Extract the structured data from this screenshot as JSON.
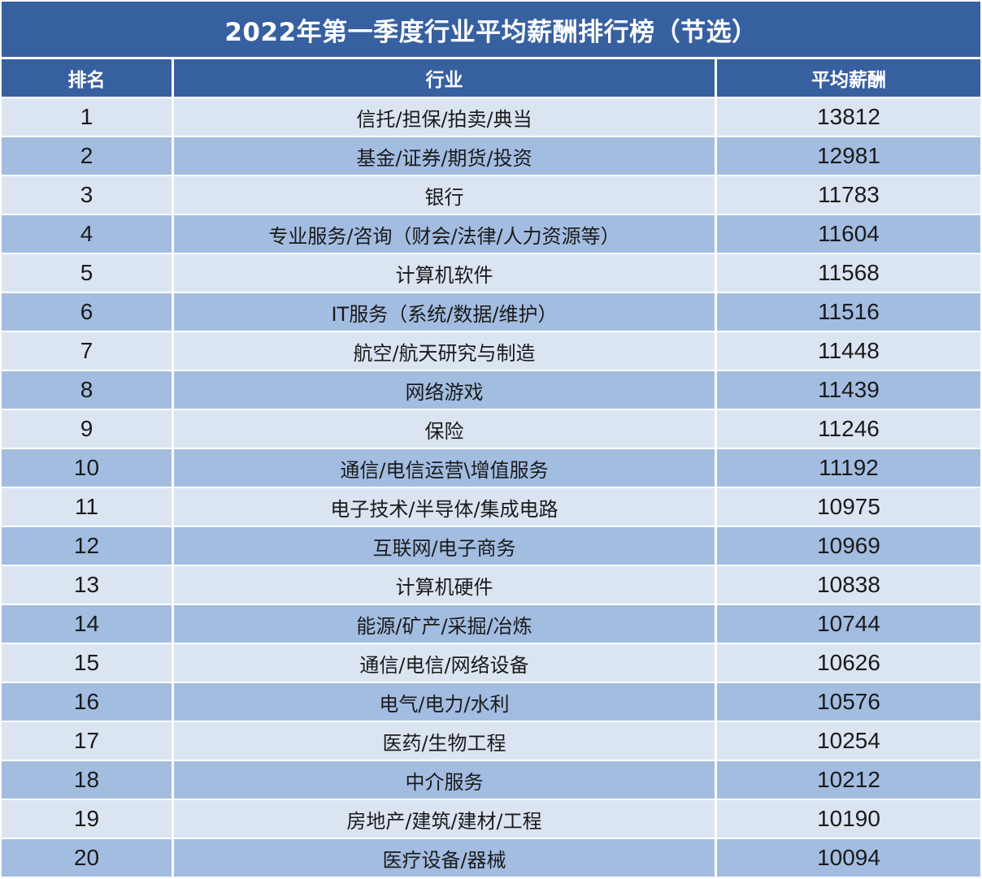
{
  "title": "2022年第一季度行业平均薪酬排行榜（节选）",
  "headers": {
    "rank": "排名",
    "industry": "行业",
    "salary": "平均薪酬"
  },
  "colors": {
    "header_bg": "#3760a0",
    "row_light": "#dbe5f2",
    "row_dark": "#a3bde1",
    "header_text": "#ffffff"
  },
  "rows": [
    {
      "rank": "1",
      "industry": "信托/担保/拍卖/典当",
      "salary": "13812"
    },
    {
      "rank": "2",
      "industry": "基金/证券/期货/投资",
      "salary": "12981"
    },
    {
      "rank": "3",
      "industry": "银行",
      "salary": "11783"
    },
    {
      "rank": "4",
      "industry": "专业服务/咨询（财会/法律/人力资源等）",
      "salary": "11604"
    },
    {
      "rank": "5",
      "industry": "计算机软件",
      "salary": "11568"
    },
    {
      "rank": "6",
      "industry": "IT服务（系统/数据/维护）",
      "salary": "11516"
    },
    {
      "rank": "7",
      "industry": "航空/航天研究与制造",
      "salary": "11448"
    },
    {
      "rank": "8",
      "industry": "网络游戏",
      "salary": "11439"
    },
    {
      "rank": "9",
      "industry": "保险",
      "salary": "11246"
    },
    {
      "rank": "10",
      "industry": "通信/电信运营\\增值服务",
      "salary": "11192"
    },
    {
      "rank": "11",
      "industry": "电子技术/半导体/集成电路",
      "salary": "10975"
    },
    {
      "rank": "12",
      "industry": "互联网/电子商务",
      "salary": "10969"
    },
    {
      "rank": "13",
      "industry": "计算机硬件",
      "salary": "10838"
    },
    {
      "rank": "14",
      "industry": "能源/矿产/采掘/冶炼",
      "salary": "10744"
    },
    {
      "rank": "15",
      "industry": "通信/电信/网络设备",
      "salary": "10626"
    },
    {
      "rank": "16",
      "industry": "电气/电力/水利",
      "salary": "10576"
    },
    {
      "rank": "17",
      "industry": "医药/生物工程",
      "salary": "10254"
    },
    {
      "rank": "18",
      "industry": "中介服务",
      "salary": "10212"
    },
    {
      "rank": "19",
      "industry": "房地产/建筑/建材/工程",
      "salary": "10190"
    },
    {
      "rank": "20",
      "industry": "医疗设备/器械",
      "salary": "10094"
    }
  ]
}
